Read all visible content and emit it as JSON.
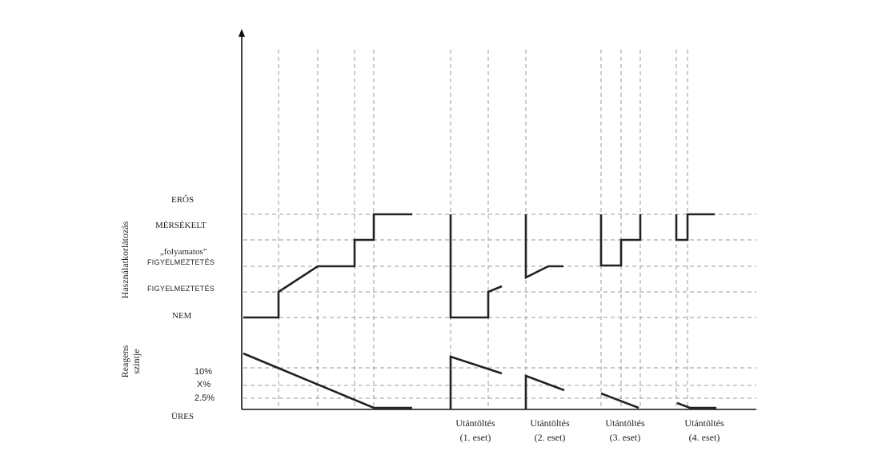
{
  "y_axis_title_top": "Használatkorlátozás",
  "y_axis_title_bottom_line1": "Reagens",
  "y_axis_title_bottom_line2": "szintje",
  "restriction_levels": {
    "eros": "ERŐS",
    "merseklet": "MÉRSÉKELT",
    "folyamatos_line1": "„folyamatos”",
    "folyamatos_line2": "FIGYELMEZTETÉS",
    "figyelmeztetes": "FIGYELMEZTETÉS",
    "nem": "NEM"
  },
  "reagent_levels": {
    "p10": "10%",
    "px": "X%",
    "p2_5": "2.5%",
    "ures": "ÜRES"
  },
  "refill_cases": [
    {
      "line1": "Utántöltés",
      "line2": "(1. eset)"
    },
    {
      "line1": "Utántöltés",
      "line2": "(2. eset)"
    },
    {
      "line1": "Utántöltés",
      "line2": "(3. eset)"
    },
    {
      "line1": "Utántöltés",
      "line2": "(4. eset)"
    }
  ]
}
